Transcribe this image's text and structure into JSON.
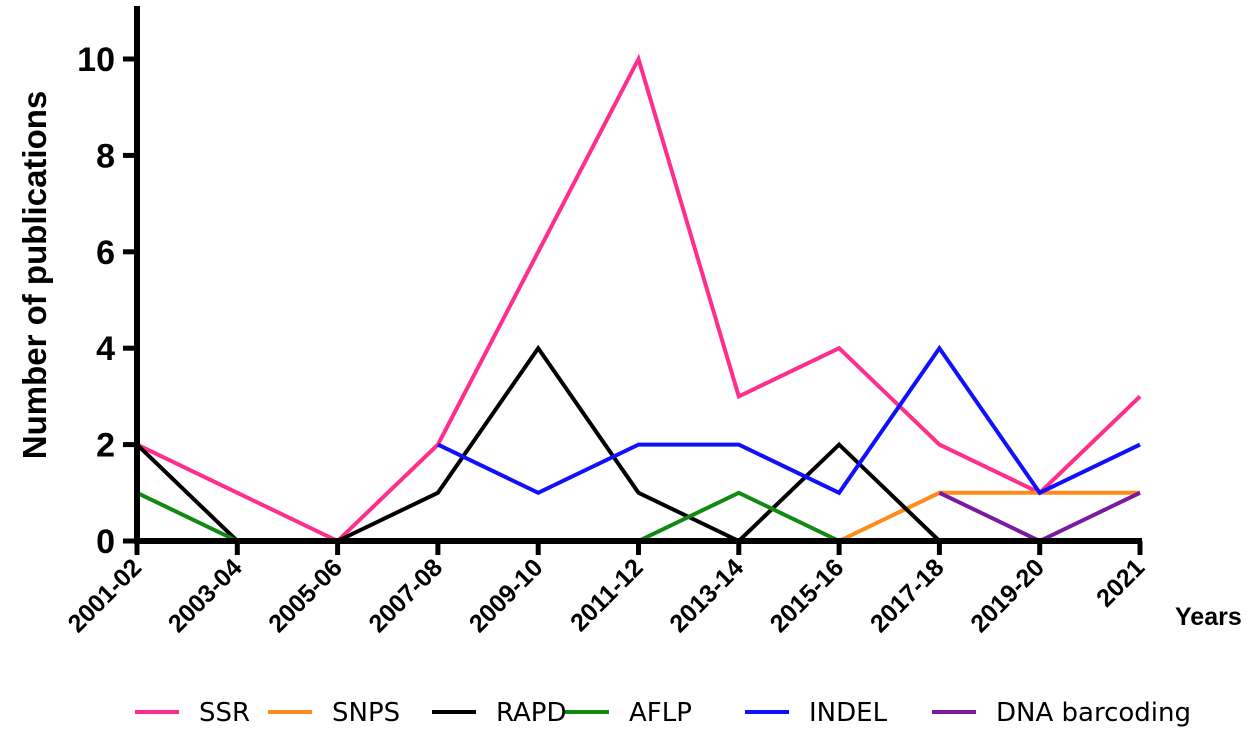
{
  "chart_data": {
    "type": "line",
    "title": "",
    "xlabel": "Years",
    "ylabel": "Number of publications",
    "categories": [
      "2001-02",
      "2003-04",
      "2005-06",
      "2007-08",
      "2009-10",
      "2011-12",
      "2013-14",
      "2015-16",
      "2017-18",
      "2019-20",
      "2021"
    ],
    "ylim": [
      0,
      11
    ],
    "yticks": [
      "0",
      "2",
      "4",
      "6",
      "8",
      "10"
    ],
    "grid": false,
    "legend_position": "bottom",
    "series": [
      {
        "name": "SSR",
        "color": "#ff2d8c",
        "values": [
          2,
          1,
          0,
          2,
          6,
          10,
          3,
          4,
          2,
          1,
          3
        ]
      },
      {
        "name": "SNPS",
        "color": "#ff8c1a",
        "values": [
          0,
          0,
          0,
          0,
          0,
          0,
          0,
          0,
          1,
          1,
          1
        ]
      },
      {
        "name": "RAPD",
        "color": "#000000",
        "values": [
          2,
          0,
          0,
          1,
          4,
          1,
          0,
          2,
          0,
          0,
          0
        ]
      },
      {
        "name": "AFLP",
        "color": "#128a12",
        "values": [
          1,
          0,
          0,
          0,
          0,
          0,
          1,
          0,
          0,
          0,
          0
        ]
      },
      {
        "name": "INDEL",
        "color": "#1010ff",
        "values": [
          null,
          null,
          null,
          2,
          1,
          2,
          2,
          1,
          4,
          1,
          2
        ]
      },
      {
        "name": "DNA barcoding",
        "color": "#7a1a9e",
        "values": [
          null,
          null,
          null,
          null,
          null,
          null,
          null,
          null,
          1,
          0,
          1
        ]
      }
    ]
  }
}
